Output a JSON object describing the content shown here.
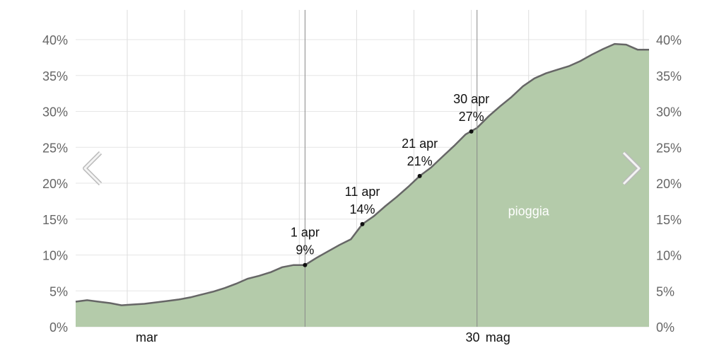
{
  "chart_data": {
    "type": "area",
    "x_start": "2021-02-20",
    "x_end": "2021-05-31",
    "ylim": [
      0,
      40
    ],
    "y_ticks": [
      0,
      5,
      10,
      15,
      20,
      25,
      30,
      35,
      40
    ],
    "y_tick_labels": [
      "0%",
      "5%",
      "10%",
      "15%",
      "20%",
      "25%",
      "30%",
      "35%",
      "40%"
    ],
    "x_tick_labels": [
      {
        "date": "2021-03-01",
        "label": "mar"
      },
      {
        "date": "2021-04-30",
        "label": "30"
      },
      {
        "date": "2021-05-01",
        "label": "mag"
      }
    ],
    "grid": true,
    "series": [
      {
        "name": "pioggia",
        "color": "#b4cbaa",
        "line_color": "#666666",
        "points": [
          [
            "2021-02-20",
            3.5
          ],
          [
            "2021-02-22",
            3.7
          ],
          [
            "2021-02-24",
            3.5
          ],
          [
            "2021-02-26",
            3.3
          ],
          [
            "2021-02-28",
            3.0
          ],
          [
            "2021-03-02",
            3.1
          ],
          [
            "2021-03-04",
            3.2
          ],
          [
            "2021-03-06",
            3.4
          ],
          [
            "2021-03-08",
            3.6
          ],
          [
            "2021-03-10",
            3.8
          ],
          [
            "2021-03-12",
            4.1
          ],
          [
            "2021-03-14",
            4.5
          ],
          [
            "2021-03-16",
            4.9
          ],
          [
            "2021-03-18",
            5.4
          ],
          [
            "2021-03-20",
            6.0
          ],
          [
            "2021-03-22",
            6.7
          ],
          [
            "2021-03-24",
            7.1
          ],
          [
            "2021-03-26",
            7.6
          ],
          [
            "2021-03-28",
            8.3
          ],
          [
            "2021-03-30",
            8.6
          ],
          [
            "2021-04-01",
            8.6
          ],
          [
            "2021-04-03",
            9.6
          ],
          [
            "2021-04-05",
            10.5
          ],
          [
            "2021-04-07",
            11.4
          ],
          [
            "2021-04-09",
            12.2
          ],
          [
            "2021-04-11",
            14.3
          ],
          [
            "2021-04-13",
            15.4
          ],
          [
            "2021-04-15",
            16.8
          ],
          [
            "2021-04-17",
            18.1
          ],
          [
            "2021-04-19",
            19.5
          ],
          [
            "2021-04-21",
            21.0
          ],
          [
            "2021-04-23",
            22.2
          ],
          [
            "2021-04-25",
            23.7
          ],
          [
            "2021-04-27",
            25.2
          ],
          [
            "2021-04-29",
            26.8
          ],
          [
            "2021-05-01",
            27.7
          ],
          [
            "2021-05-03",
            29.3
          ],
          [
            "2021-05-05",
            30.7
          ],
          [
            "2021-05-07",
            32.0
          ],
          [
            "2021-05-09",
            33.5
          ],
          [
            "2021-05-11",
            34.6
          ],
          [
            "2021-05-13",
            35.3
          ],
          [
            "2021-05-15",
            35.8
          ],
          [
            "2021-05-17",
            36.3
          ],
          [
            "2021-05-19",
            37.0
          ],
          [
            "2021-05-21",
            37.9
          ],
          [
            "2021-05-23",
            38.7
          ],
          [
            "2021-05-25",
            39.4
          ],
          [
            "2021-05-27",
            39.3
          ],
          [
            "2021-05-29",
            38.6
          ],
          [
            "2021-05-31",
            38.6
          ]
        ]
      }
    ],
    "annotations": [
      {
        "date": "2021-04-01",
        "value": 8.6,
        "date_label": "1 apr",
        "value_label": "9%"
      },
      {
        "date": "2021-04-11",
        "value": 14.3,
        "date_label": "11 apr",
        "value_label": "14%"
      },
      {
        "date": "2021-04-21",
        "value": 21.0,
        "date_label": "21 apr",
        "value_label": "21%"
      },
      {
        "date": "2021-04-30",
        "value": 27.2,
        "date_label": "30 apr",
        "value_label": "27%"
      }
    ],
    "series_label_position": {
      "date": "2021-05-10",
      "value": 15.5
    },
    "vertical_markers": [
      "2021-04-01",
      "2021-05-01"
    ]
  },
  "nav": {
    "prev_icon": "chevron-left-icon",
    "next_icon": "chevron-right-icon"
  }
}
